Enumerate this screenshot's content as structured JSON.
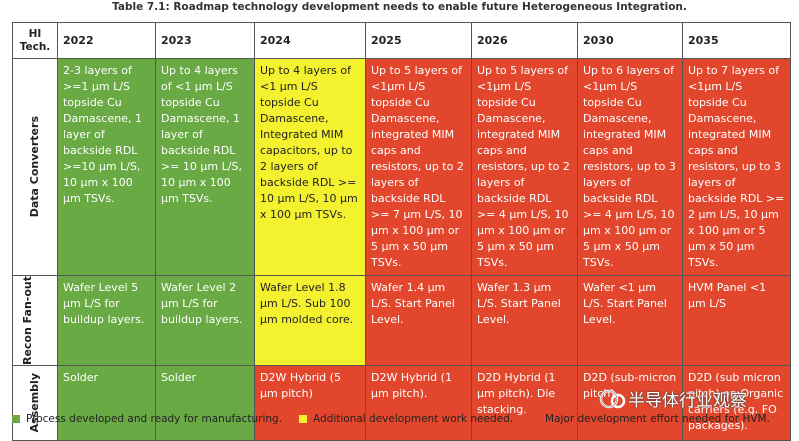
{
  "title": "Table 7.1: Roadmap technology development needs to enable future Heterogeneous Integration.",
  "table": {
    "header": [
      "HI Tech.",
      "2022",
      "2023",
      "2024",
      "2025",
      "2026",
      "2030",
      "2035"
    ],
    "rows": [
      {
        "label": "Data Converters",
        "cells": [
          {
            "text": "2-3 layers of >=1 µm L/S topside Cu Damascene, 1 layer of backside RDL >=10 µm L/S, 10 µm x 100 µm TSVs.",
            "fill": "#6aaa45"
          },
          {
            "text": "Up to 4 layers of <1 µm L/S topside Cu Damascene, 1 layer of backside RDL >= 10 µm L/S, 10 µm x 100 µm TSVs.",
            "fill": "#6aaa45"
          },
          {
            "text": "Up to 4 layers of <1 µm L/S topside Cu Damascene, Integrated MIM capacitors, up to 2 layers of backside RDL >= 10 µm L/S, 10 µm x 100 µm TSVs.",
            "fill": "#f4f12f"
          },
          {
            "text": "Up to 5 layers of <1µm L/S topside Cu Damascene, integrated MIM caps and resistors, up to 2 layers of backside RDL >= 7 µm L/S, 10 µm x 100 µm or 5 µm x 50 µm TSVs.",
            "fill": "#e2472d"
          },
          {
            "text": "Up to 5 layers of <1µm L/S topside Cu Damascene, integrated MIM caps and resistors, up to 2 layers of backside RDL >= 4 µm L/S, 10 µm x 100 µm or 5 µm x 50 µm TSVs.",
            "fill": "#e2472d"
          },
          {
            "text": "Up to 6 layers of <1µm L/S topside Cu Damascene, integrated MIM caps and resistors, up to 3 layers of backside RDL >= 4 µm L/S, 10 µm x 100 µm or 5 µm x 50 µm TSVs.",
            "fill": "#e2472d"
          },
          {
            "text": "Up to 7 layers of <1µm L/S topside Cu Damascene, integrated MIM caps and resistors, up to 3 layers of backside RDL >= 2 µm L/S, 10 µm x 100 µm or 5 µm x 50 µm TSVs.",
            "fill": "#e2472d"
          }
        ]
      },
      {
        "label": "Recon Fan-out",
        "cells": [
          {
            "text": "Wafer Level 5 µm L/S for buildup layers.",
            "fill": "#6aaa45"
          },
          {
            "text": "Wafer Level 2 µm L/S for buildup layers.",
            "fill": "#6aaa45"
          },
          {
            "text": "Wafer Level 1.8 µm L/S. Sub 100 µm molded core.",
            "fill": "#f4f12f"
          },
          {
            "text": "Wafer 1.4 µm L/S. Start Panel Level.",
            "fill": "#e2472d"
          },
          {
            "text": "Wafer 1.3 µm L/S. Start Panel Level.",
            "fill": "#e2472d"
          },
          {
            "text": "Wafer <1 µm L/S. Start Panel Level.",
            "fill": "#e2472d"
          },
          {
            "text": "HVM Panel <1 µm L/S",
            "fill": "#e2472d"
          }
        ]
      },
      {
        "label": "Assembly",
        "cells": [
          {
            "text": "Solder",
            "fill": "#6aaa45"
          },
          {
            "text": "Solder",
            "fill": "#6aaa45"
          },
          {
            "text": "D2W Hybrid (5 µm pitch)",
            "fill": "#e2472d"
          },
          {
            "text": "D2W Hybrid (1 µm pitch).",
            "fill": "#e2472d"
          },
          {
            "text": "D2D Hybrid (1 µm pitch). Die stacking.",
            "fill": "#e2472d"
          },
          {
            "text": "D2D (sub-micron pitch).",
            "fill": "#e2472d"
          },
          {
            "text": "D2D (sub micron pitch) on Organic carriers (e.g. FO packages).",
            "fill": "#e2472d"
          }
        ]
      }
    ]
  },
  "legend": [
    {
      "text": "Process developed and ready for manufacturing.",
      "color": "#6aaa45"
    },
    {
      "text": "Additional development work needed.",
      "color": "#f4f12f"
    },
    {
      "text": "Major development effort needed for HVM.",
      "color": "#e2472d"
    }
  ],
  "watermark": "半导体行业观察"
}
